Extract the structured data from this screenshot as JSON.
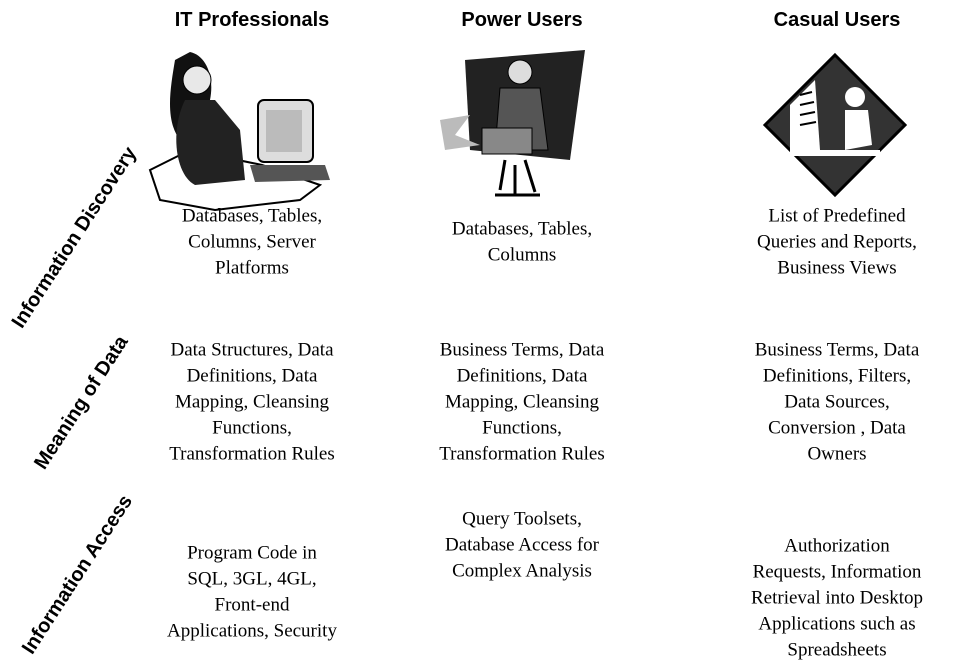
{
  "columns": [
    "IT Professionals",
    "Power Users",
    "Casual Users"
  ],
  "rows": [
    {
      "label": "Information Discovery",
      "cells": [
        [
          "Databases, Tables,",
          "Columns, Server",
          "Platforms"
        ],
        [
          "Databases, Tables,",
          "Columns"
        ],
        [
          "List of Predefined",
          "Queries and Reports,",
          "Business Views"
        ]
      ]
    },
    {
      "label": "Meaning of Data",
      "cells": [
        [
          "Data Structures, Data",
          "Definitions, Data",
          "Mapping, Cleansing",
          "Functions,",
          "Transformation Rules"
        ],
        [
          "Business Terms, Data",
          "Definitions, Data",
          "Mapping, Cleansing",
          "Functions,",
          "Transformation Rules"
        ],
        [
          "Business Terms, Data",
          "Definitions, Filters,",
          "Data Sources,",
          "Conversion , Data",
          "Owners"
        ]
      ]
    },
    {
      "label": "Information Access",
      "cells": [
        [
          "Program Code in",
          "SQL, 3GL, 4GL,",
          "Front-end",
          "Applications, Security"
        ],
        [
          "Query Toolsets,",
          "Database Access for",
          "Complex Analysis"
        ],
        [
          "Authorization",
          "Requests, Information",
          "Retrieval into Desktop",
          "Applications such as",
          "Spreadsheets"
        ]
      ]
    }
  ]
}
